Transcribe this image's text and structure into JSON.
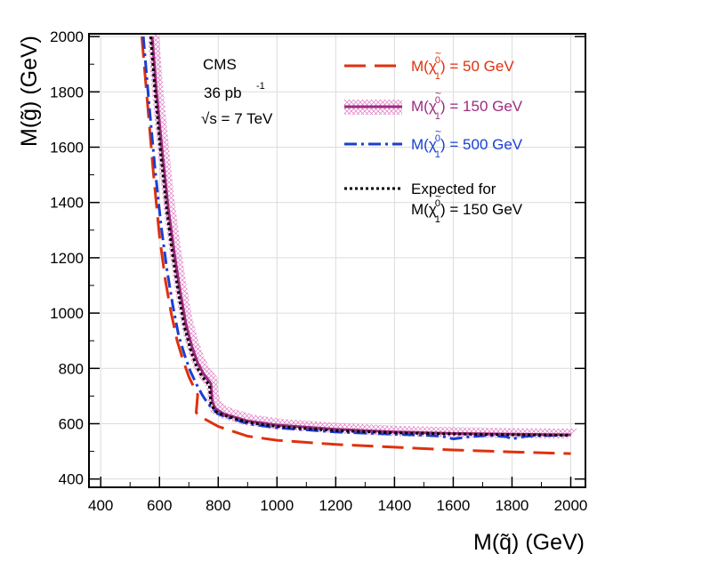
{
  "chart_data": {
    "type": "line",
    "title": "",
    "xlabel": "M(q̃)  (GeV)",
    "ylabel": "M(g̃)  (GeV)",
    "xlim": [
      360,
      2050
    ],
    "ylim": [
      370,
      2010
    ],
    "xticks": [
      400,
      600,
      800,
      1000,
      1200,
      1400,
      1600,
      1800,
      2000
    ],
    "yticks": [
      400,
      600,
      800,
      1000,
      1200,
      1400,
      1600,
      1800,
      2000
    ],
    "annotations": [
      "CMS",
      "36 pb",
      "-1",
      "√s = 7 TeV"
    ],
    "legend_position": "top-right",
    "series": [
      {
        "name": "M(χ̃₁⁰) = 50 GeV",
        "legend_main": "M(χ",
        "legend_rest": ") = 50 GeV",
        "legend_sup": "0",
        "legend_sub": "1",
        "style": "long-dash",
        "color": "#e0300e",
        "x": [
          540,
          560,
          580,
          600,
          620,
          640,
          660,
          680,
          700,
          720,
          730,
          725,
          740,
          800,
          900,
          1000,
          1200,
          1400,
          1600,
          1800,
          2000
        ],
        "y": [
          2000,
          1750,
          1500,
          1280,
          1120,
          1000,
          900,
          830,
          770,
          725,
          705,
          640,
          625,
          590,
          555,
          540,
          525,
          515,
          505,
          498,
          492
        ]
      },
      {
        "name": "M(χ̃₁⁰) = 150 GeV",
        "legend_main": "M(χ",
        "legend_rest": ") = 150 GeV",
        "legend_sup": "0",
        "legend_sub": "1",
        "style": "solid-band",
        "color": "#9c2b7e",
        "band_color": "#e079c4",
        "x": [
          575,
          590,
          610,
          630,
          650,
          670,
          690,
          710,
          730,
          750,
          775,
          780,
          790,
          820,
          900,
          1000,
          1200,
          1400,
          1600,
          1800,
          2000
        ],
        "y": [
          2000,
          1800,
          1580,
          1380,
          1220,
          1080,
          960,
          880,
          820,
          780,
          745,
          680,
          655,
          635,
          610,
          595,
          580,
          570,
          565,
          562,
          560
        ]
      },
      {
        "name": "M(χ̃₁⁰) = 500 GeV",
        "legend_main": "M(χ",
        "legend_rest": ") = 500 GeV",
        "legend_sup": "0",
        "legend_sub": "1",
        "style": "dash-dot",
        "color": "#1a3fd1",
        "x": [
          545,
          565,
          585,
          605,
          625,
          645,
          665,
          685,
          705,
          725,
          745,
          760,
          775,
          800,
          900,
          1000,
          1200,
          1400,
          1500,
          1560,
          1600,
          1650,
          1720,
          1780,
          1800,
          1850,
          2000
        ],
        "y": [
          2000,
          1750,
          1520,
          1320,
          1160,
          1030,
          920,
          850,
          790,
          745,
          705,
          680,
          660,
          635,
          600,
          585,
          570,
          562,
          558,
          555,
          545,
          552,
          558,
          553,
          545,
          555,
          560
        ]
      },
      {
        "name": "Expected for M(χ̃₁⁰) = 150 GeV",
        "legend_line1": "Expected for",
        "legend_main": "M(χ",
        "legend_rest": ") = 150 GeV",
        "legend_sup": "0",
        "legend_sub": "1",
        "style": "dotted",
        "color": "#000000",
        "x": [
          570,
          585,
          605,
          625,
          645,
          665,
          685,
          705,
          725,
          745,
          770,
          775,
          790,
          820,
          900,
          1000,
          1200,
          1400,
          1600,
          1800,
          2000
        ],
        "y": [
          2000,
          1800,
          1570,
          1370,
          1210,
          1070,
          950,
          870,
          810,
          770,
          740,
          670,
          645,
          630,
          605,
          590,
          575,
          567,
          563,
          560,
          558
        ]
      }
    ]
  }
}
